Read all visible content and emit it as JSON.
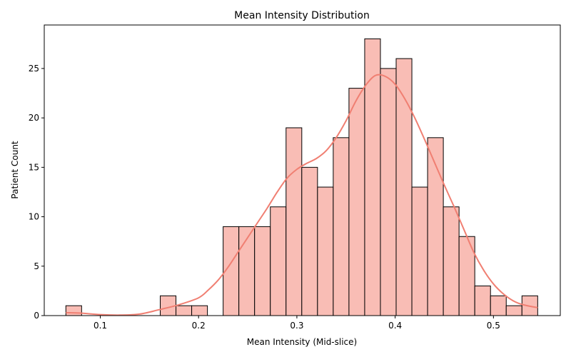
{
  "chart_data": {
    "type": "bar",
    "subtype": "histogram_with_kde",
    "title": "Mean Intensity Distribution",
    "xlabel": "Mean Intensity (Mid-slice)",
    "ylabel": "Patient Count",
    "xlim": [
      0.043,
      0.568
    ],
    "ylim": [
      0,
      29.4
    ],
    "xticks": [
      "0.1",
      "0.2",
      "0.3",
      "0.4",
      "0.5"
    ],
    "yticks": [
      "0",
      "5",
      "10",
      "15",
      "20",
      "25"
    ],
    "bin_start": 0.065,
    "bin_width": 0.016,
    "values": [
      1,
      0,
      0,
      0,
      0,
      0,
      2,
      1,
      1,
      0,
      9,
      9,
      9,
      11,
      19,
      15,
      13,
      18,
      23,
      28,
      25,
      26,
      13,
      18,
      11,
      8,
      3,
      2,
      1,
      2
    ],
    "kde": {
      "x": [
        0.065,
        0.08,
        0.1,
        0.12,
        0.14,
        0.16,
        0.18,
        0.2,
        0.21,
        0.22,
        0.23,
        0.24,
        0.25,
        0.26,
        0.27,
        0.28,
        0.29,
        0.3,
        0.31,
        0.32,
        0.33,
        0.34,
        0.35,
        0.36,
        0.37,
        0.38,
        0.39,
        0.4,
        0.41,
        0.42,
        0.43,
        0.44,
        0.45,
        0.46,
        0.47,
        0.48,
        0.49,
        0.5,
        0.51,
        0.52,
        0.53,
        0.545
      ],
      "y": [
        0.3,
        0.25,
        0.1,
        0.05,
        0.15,
        0.6,
        1.1,
        1.8,
        2.6,
        3.6,
        4.9,
        6.4,
        7.9,
        9.4,
        10.9,
        12.5,
        13.9,
        14.8,
        15.4,
        15.9,
        16.7,
        18.0,
        19.7,
        21.7,
        23.3,
        24.3,
        24.2,
        23.4,
        21.9,
        20.0,
        17.8,
        15.5,
        13.2,
        11.0,
        8.7,
        6.4,
        4.6,
        3.2,
        2.2,
        1.5,
        1.1,
        0.8
      ]
    },
    "colors": {
      "bar_fill": "#f9bdb5",
      "bar_stroke": "#000000",
      "kde_line": "#f07f72"
    },
    "grid": false,
    "legend": "none"
  }
}
